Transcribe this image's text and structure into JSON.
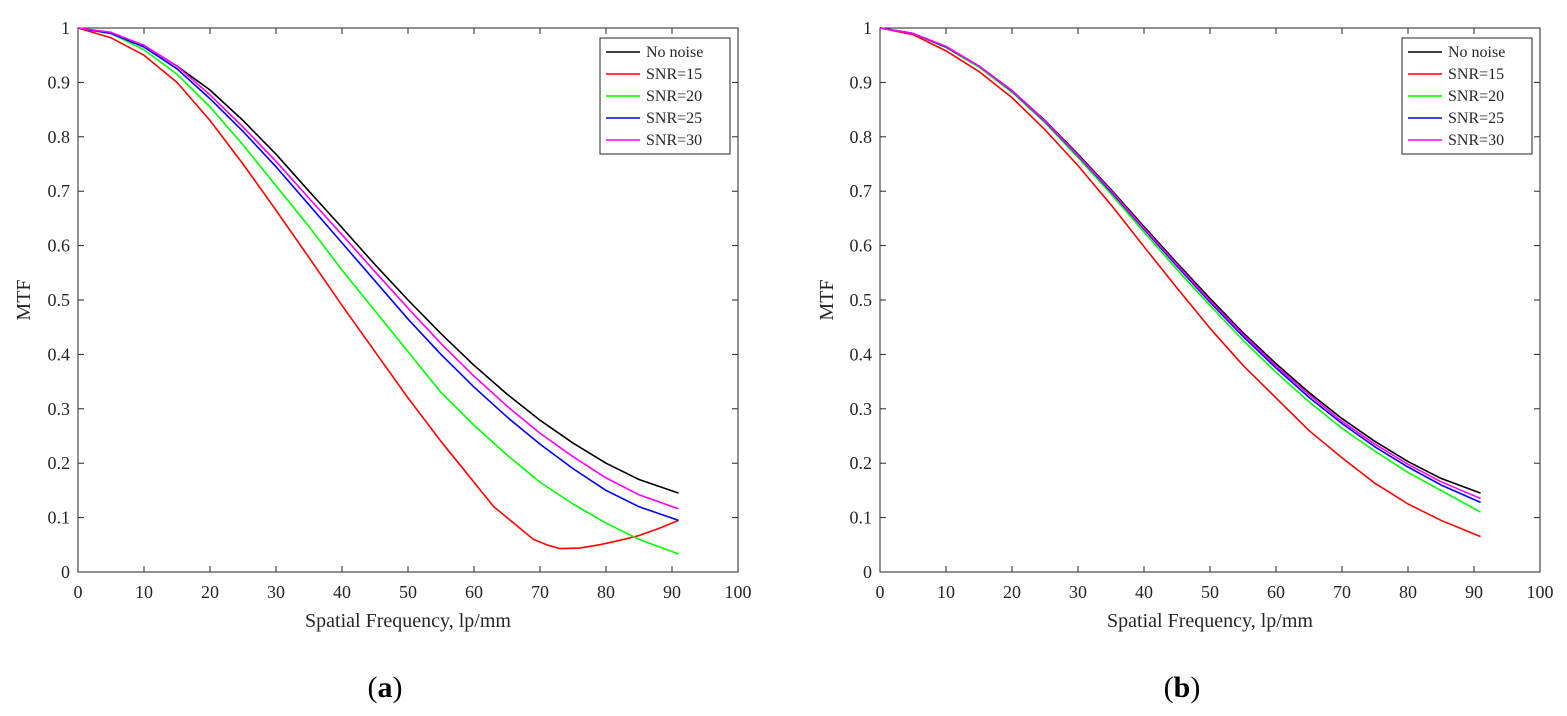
{
  "chart_data": [
    {
      "type": "line",
      "panel_label": "a",
      "xlabel": "Spatial Frequency, lp/mm",
      "ylabel": "MTF",
      "xlim": [
        0,
        100
      ],
      "ylim": [
        0,
        1
      ],
      "x_ticks": [
        "0",
        "10",
        "20",
        "30",
        "40",
        "50",
        "60",
        "70",
        "80",
        "90",
        "100"
      ],
      "y_ticks": [
        "0",
        "0.1",
        "0.2",
        "0.3",
        "0.4",
        "0.5",
        "0.6",
        "0.7",
        "0.8",
        "0.9",
        "1"
      ],
      "legend_position": "top-right",
      "grid": false,
      "series": [
        {
          "name": "No noise",
          "color": "#000000",
          "x": [
            0,
            5,
            10,
            15,
            20,
            25,
            30,
            35,
            40,
            45,
            50,
            55,
            60,
            65,
            70,
            75,
            80,
            85,
            91
          ],
          "y": [
            1,
            0.99,
            0.968,
            0.93,
            0.886,
            0.83,
            0.768,
            0.7,
            0.633,
            0.565,
            0.5,
            0.438,
            0.38,
            0.327,
            0.279,
            0.237,
            0.2,
            0.17,
            0.145
          ]
        },
        {
          "name": "SNR=15",
          "color": "#ff0000",
          "x": [
            0,
            5,
            10,
            15,
            20,
            25,
            30,
            35,
            40,
            45,
            50,
            55,
            60,
            63,
            66,
            69,
            71,
            73,
            76,
            79,
            82,
            85,
            88,
            91
          ],
          "y": [
            1,
            0.982,
            0.95,
            0.9,
            0.83,
            0.75,
            0.665,
            0.578,
            0.49,
            0.405,
            0.32,
            0.24,
            0.165,
            0.12,
            0.09,
            0.06,
            0.05,
            0.043,
            0.044,
            0.05,
            0.058,
            0.067,
            0.08,
            0.095
          ]
        },
        {
          "name": "SNR=20",
          "color": "#00ff00",
          "x": [
            0,
            5,
            10,
            15,
            20,
            25,
            30,
            35,
            40,
            45,
            50,
            55,
            60,
            65,
            70,
            75,
            80,
            85,
            91
          ],
          "y": [
            1,
            0.99,
            0.96,
            0.915,
            0.855,
            0.785,
            0.71,
            0.635,
            0.555,
            0.48,
            0.405,
            0.33,
            0.27,
            0.215,
            0.165,
            0.125,
            0.09,
            0.06,
            0.033
          ]
        },
        {
          "name": "SNR=25",
          "color": "#0000ff",
          "x": [
            0,
            5,
            10,
            15,
            20,
            25,
            30,
            35,
            40,
            45,
            50,
            55,
            60,
            65,
            70,
            75,
            80,
            85,
            91
          ],
          "y": [
            1,
            0.99,
            0.965,
            0.925,
            0.87,
            0.81,
            0.745,
            0.675,
            0.605,
            0.535,
            0.465,
            0.4,
            0.34,
            0.285,
            0.235,
            0.19,
            0.15,
            0.12,
            0.095
          ]
        },
        {
          "name": "SNR=30",
          "color": "#ff00ff",
          "x": [
            0,
            5,
            10,
            15,
            20,
            25,
            30,
            35,
            40,
            45,
            50,
            55,
            60,
            65,
            70,
            75,
            80,
            85,
            91
          ],
          "y": [
            1,
            0.992,
            0.968,
            0.93,
            0.877,
            0.818,
            0.755,
            0.687,
            0.62,
            0.552,
            0.485,
            0.42,
            0.36,
            0.305,
            0.255,
            0.212,
            0.173,
            0.142,
            0.116
          ]
        }
      ]
    },
    {
      "type": "line",
      "panel_label": "b",
      "xlabel": "Spatial Frequency, lp/mm",
      "ylabel": "MTF",
      "xlim": [
        0,
        100
      ],
      "ylim": [
        0,
        1
      ],
      "x_ticks": [
        "0",
        "10",
        "20",
        "30",
        "40",
        "50",
        "60",
        "70",
        "80",
        "90",
        "100"
      ],
      "y_ticks": [
        "0",
        "0.1",
        "0.2",
        "0.3",
        "0.4",
        "0.5",
        "0.6",
        "0.7",
        "0.8",
        "0.9",
        "1"
      ],
      "legend_position": "top-right",
      "grid": false,
      "series": [
        {
          "name": "No noise",
          "color": "#000000",
          "x": [
            0,
            5,
            10,
            15,
            20,
            25,
            30,
            35,
            40,
            45,
            50,
            55,
            60,
            65,
            70,
            75,
            80,
            85,
            91
          ],
          "y": [
            1,
            0.99,
            0.966,
            0.93,
            0.885,
            0.83,
            0.768,
            0.703,
            0.635,
            0.568,
            0.503,
            0.44,
            0.383,
            0.33,
            0.282,
            0.24,
            0.203,
            0.172,
            0.145
          ]
        },
        {
          "name": "SNR=15",
          "color": "#ff0000",
          "x": [
            0,
            5,
            10,
            15,
            20,
            25,
            30,
            35,
            40,
            45,
            50,
            55,
            60,
            65,
            70,
            75,
            80,
            85,
            91
          ],
          "y": [
            1,
            0.988,
            0.958,
            0.92,
            0.872,
            0.813,
            0.747,
            0.675,
            0.598,
            0.522,
            0.448,
            0.38,
            0.32,
            0.26,
            0.21,
            0.163,
            0.125,
            0.095,
            0.065
          ]
        },
        {
          "name": "SNR=20",
          "color": "#00ff00",
          "x": [
            0,
            5,
            10,
            15,
            20,
            25,
            30,
            35,
            40,
            45,
            50,
            55,
            60,
            65,
            70,
            75,
            80,
            85,
            91
          ],
          "y": [
            1,
            0.99,
            0.964,
            0.928,
            0.882,
            0.826,
            0.762,
            0.695,
            0.625,
            0.556,
            0.49,
            0.426,
            0.367,
            0.313,
            0.264,
            0.222,
            0.183,
            0.15,
            0.11
          ]
        },
        {
          "name": "SNR=25",
          "color": "#0000ff",
          "x": [
            0,
            5,
            10,
            15,
            20,
            25,
            30,
            35,
            40,
            45,
            50,
            55,
            60,
            65,
            70,
            75,
            80,
            85,
            91
          ],
          "y": [
            1,
            0.99,
            0.965,
            0.93,
            0.884,
            0.828,
            0.765,
            0.699,
            0.63,
            0.562,
            0.496,
            0.433,
            0.375,
            0.321,
            0.273,
            0.23,
            0.193,
            0.16,
            0.128
          ]
        },
        {
          "name": "SNR=30",
          "color": "#ff00ff",
          "x": [
            0,
            5,
            10,
            15,
            20,
            25,
            30,
            35,
            40,
            45,
            50,
            55,
            60,
            65,
            70,
            75,
            80,
            85,
            91
          ],
          "y": [
            1,
            0.99,
            0.966,
            0.93,
            0.885,
            0.829,
            0.766,
            0.701,
            0.632,
            0.565,
            0.499,
            0.437,
            0.379,
            0.326,
            0.277,
            0.235,
            0.198,
            0.166,
            0.135
          ]
        }
      ]
    }
  ]
}
